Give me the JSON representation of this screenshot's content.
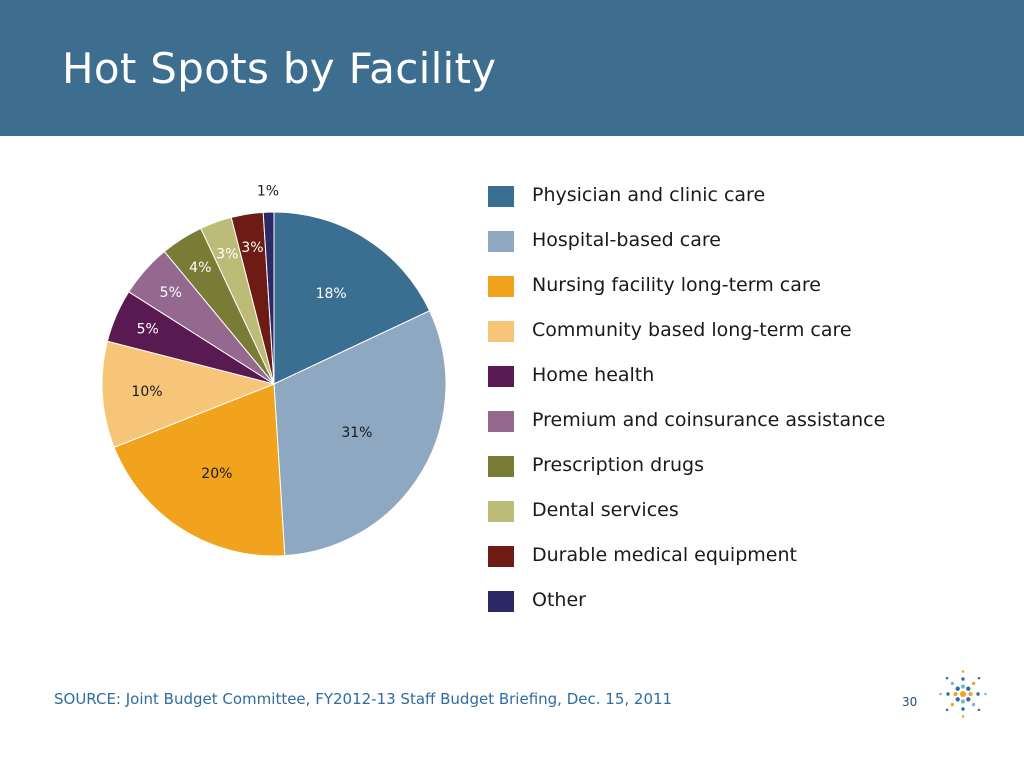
{
  "slide": {
    "title": "Hot Spots by Facility",
    "source_text": "SOURCE:  Joint Budget Committee, FY2012-13 Staff Budget Briefing, Dec. 15, 2011",
    "page_number": "30",
    "header_color": "#3d6e8f"
  },
  "chart_data": {
    "type": "pie",
    "title": "",
    "legend_position": "right",
    "slices": [
      {
        "label": "Physician and clinic care",
        "value": 18,
        "display": "18%",
        "color": "#3b6f91"
      },
      {
        "label": "Hospital-based care",
        "value": 31,
        "display": "31%",
        "color": "#8da8c0"
      },
      {
        "label": "Nursing facility long-term care",
        "value": 20,
        "display": "20%",
        "color": "#f2a31e"
      },
      {
        "label": "Community based long-term care",
        "value": 10,
        "display": "10%",
        "color": "#f7c578"
      },
      {
        "label": "Home health",
        "value": 5,
        "display": "5%",
        "color": "#581a51"
      },
      {
        "label": "Premium and coinsurance assistance",
        "value": 5,
        "display": "5%",
        "color": "#95698f"
      },
      {
        "label": "Prescription drugs",
        "value": 4,
        "display": "4%",
        "color": "#7a7b35"
      },
      {
        "label": "Dental services",
        "value": 3,
        "display": "3%",
        "color": "#bcbb78"
      },
      {
        "label": "Durable medical equipment",
        "value": 3,
        "display": "3%",
        "color": "#6e1b15"
      },
      {
        "label": "Other",
        "value": 1,
        "display": "1%",
        "color": "#2c2a66"
      }
    ]
  }
}
